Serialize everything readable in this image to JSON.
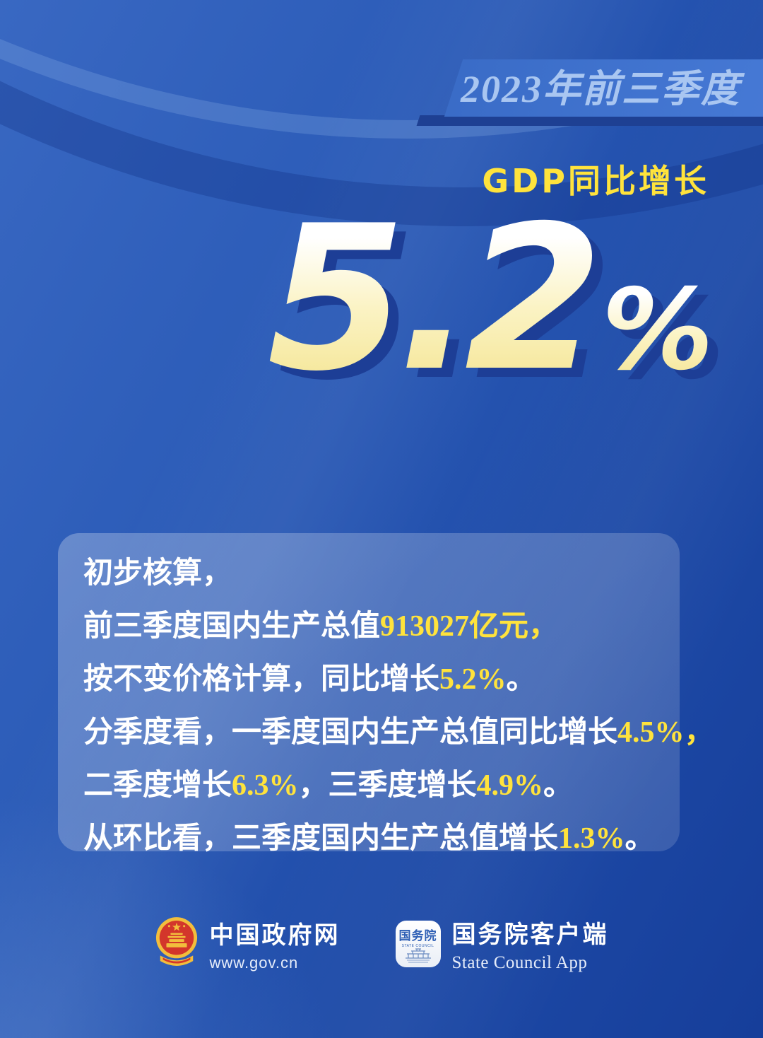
{
  "banner": {
    "label": "2023年前三季度"
  },
  "headline": {
    "label": "GDP同比增长",
    "value": "5.2",
    "unit": "%"
  },
  "card": {
    "lines": [
      [
        {
          "text": "初步核算，",
          "hl": false
        }
      ],
      [
        {
          "text": "前三季度国内生产总值",
          "hl": false
        },
        {
          "text": "913027亿元，",
          "hl": true
        }
      ],
      [
        {
          "text": "按不变价格计算，同比增长",
          "hl": false
        },
        {
          "text": "5.2%",
          "hl": true
        },
        {
          "text": "。",
          "hl": false
        }
      ],
      [
        {
          "text": "分季度看，一季度国内生产总值同比增长",
          "hl": false
        },
        {
          "text": "4.5%，",
          "hl": true
        }
      ],
      [
        {
          "text": "二季度增长",
          "hl": false
        },
        {
          "text": "6.3%",
          "hl": true
        },
        {
          "text": "，三季度增长",
          "hl": false
        },
        {
          "text": "4.9%",
          "hl": true
        },
        {
          "text": "。",
          "hl": false
        }
      ],
      [
        {
          "text": "从环比看，三季度国内生产总值增长",
          "hl": false
        },
        {
          "text": "1.3%",
          "hl": true
        },
        {
          "text": "。",
          "hl": false
        }
      ]
    ]
  },
  "footer": {
    "gov": {
      "name": "中国政府网",
      "url": "www.gov.cn",
      "icon": "national-emblem-icon"
    },
    "app": {
      "name": "国务院客户端",
      "subtitle": "State Council App",
      "icon_label": "国务院",
      "icon_sub": "STATE COUNCIL",
      "icon": "state-council-app-icon"
    }
  },
  "colors": {
    "accent_yellow": "#FFE33C",
    "banner_text": "#A9C6F1",
    "banner_shadow": "#1E4093",
    "number_shadow": "#1D3E96",
    "background_top": "#3968C2",
    "background_bottom": "#163E9A",
    "text_white": "#FFFFFF"
  }
}
